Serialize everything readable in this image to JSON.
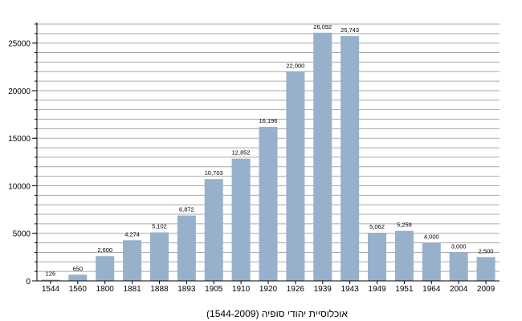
{
  "chart_data": {
    "type": "bar",
    "title": "אוכלוסיית יהודי סופיה (1544-2009)",
    "xlabel": "",
    "ylabel": "",
    "categories": [
      "1544",
      "1560",
      "1800",
      "1881",
      "1888",
      "1893",
      "1905",
      "1910",
      "1920",
      "1926",
      "1939",
      "1943",
      "1949",
      "1951",
      "1964",
      "2004",
      "2009"
    ],
    "values": [
      126,
      650,
      2600,
      4274,
      5102,
      6872,
      10703,
      12852,
      16196,
      22000,
      26092,
      25743,
      5062,
      5259,
      4000,
      3000,
      2500
    ],
    "value_labels": [
      "126",
      "650",
      "2,600",
      "4,274",
      "5,102",
      "6,872",
      "10,703",
      "12,852",
      "16,196",
      "22,000",
      "26,092",
      "25,743",
      "5,062",
      "5,259",
      "4,000",
      "3,000",
      "2,500"
    ],
    "ylim": [
      0,
      27000
    ],
    "y_ticks": [
      0,
      5000,
      10000,
      15000,
      20000,
      25000
    ],
    "y_tick_labels": [
      "0",
      "5000",
      "10000",
      "15000",
      "20000",
      "25000"
    ],
    "grid": true,
    "bar_color": "#97b1cc",
    "grid_color": "#aaaaaa"
  }
}
